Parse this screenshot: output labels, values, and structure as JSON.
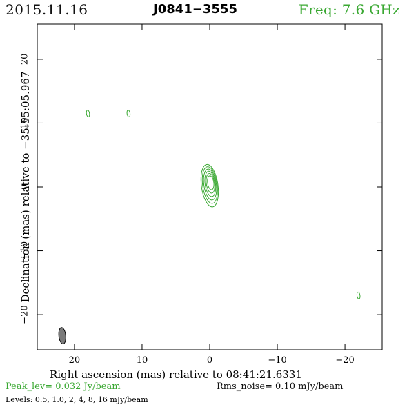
{
  "header": {
    "date": "2015.11.16",
    "source": "J0841−3555",
    "frequency": "Freq: 7.6 GHz"
  },
  "axes": {
    "xlabel": "Right ascension (mas) relative to 08:41:21.6331",
    "ylabel": "Declination (mas) relative to −35:55:05.967",
    "x_ticks": [
      20,
      10,
      0,
      -10,
      -20
    ],
    "x_tick_labels": [
      "20",
      "10",
      "0",
      "−10",
      "−20"
    ],
    "y_ticks": [
      20,
      10,
      0,
      -10,
      -20
    ],
    "y_tick_labels": [
      "20",
      "10",
      "0",
      "−10",
      "−20"
    ],
    "xlim": [
      25.5,
      -25.5
    ],
    "ylim": [
      -25.5,
      25.5
    ]
  },
  "footer": {
    "peak": "Peak_lev=  0.032 Jy/beam",
    "rms": "Rms_noise= 0.10 mJy/beam",
    "levels": "Levels: 0.5, 1.0,   2,   4,   8,  16 mJy/beam"
  },
  "colors": {
    "contour": "#3aa832",
    "beam_fill": "#7a7a7a",
    "frame": "#000000"
  },
  "image": {
    "contour_levels_mjy": [
      0.5,
      1.0,
      2,
      4,
      8,
      16
    ],
    "components": [
      {
        "x": 0.0,
        "y": 0.2,
        "levels": 6
      },
      {
        "x": 18.0,
        "y": 11.5,
        "levels": 1
      },
      {
        "x": 12.0,
        "y": 11.5,
        "levels": 1
      },
      {
        "x": -22.0,
        "y": -17.0,
        "levels": 1
      }
    ],
    "beam": {
      "x": 21.8,
      "y": -23.3
    }
  }
}
